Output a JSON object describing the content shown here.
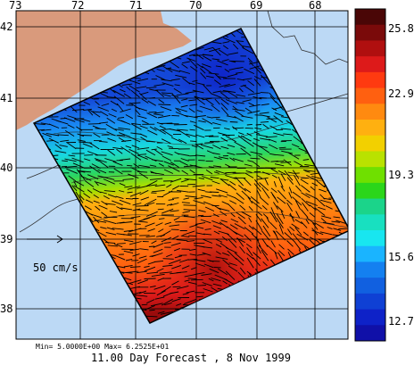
{
  "map": {
    "lon_ticks": [
      "73",
      "72",
      "71",
      "70",
      "69",
      "68"
    ],
    "lat_ticks": [
      "42",
      "41",
      "40",
      "39",
      "38"
    ],
    "scale_label": "50 cm/s",
    "ocean_color": "#bcd9f5",
    "land_color": "#d99a7c"
  },
  "colorbar": {
    "labels": [
      "25.8",
      "22.9",
      "19.3",
      "15.6",
      "12.7"
    ],
    "colors": [
      "#4a0606",
      "#7a0a0a",
      "#b00f0f",
      "#dd1a1a",
      "#ff3a10",
      "#ff6010",
      "#ff8a10",
      "#ffb010",
      "#f2d000",
      "#b9e200",
      "#6fe000",
      "#2bd61a",
      "#1bd48a",
      "#18e0c0",
      "#18e6f0",
      "#1ab4ff",
      "#1480f0",
      "#1160e0",
      "#0f40d4",
      "#0e22c8",
      "#1010a8"
    ]
  },
  "footer": {
    "minmax": "Min= 5.0000E+00  Max= 6.2525E+01",
    "caption": "11.00 Day Forecast ,   8 Nov 1999"
  }
}
